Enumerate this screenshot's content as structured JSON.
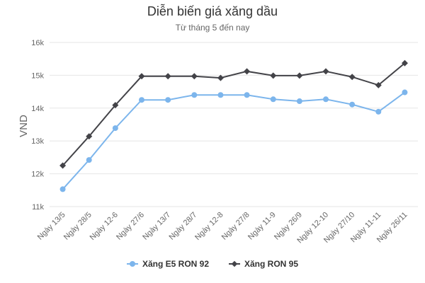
{
  "colors": {
    "e5": "#7cb5ec",
    "ron95": "#434348",
    "grid": "#e6e6e6",
    "text": "#666666"
  },
  "chart_data": {
    "type": "line",
    "title": "Diễn biến giá xăng dầu",
    "subtitle": "Từ tháng 5 đến nay",
    "ylabel": "VND",
    "xlabel": "",
    "ylim": [
      11000,
      16000
    ],
    "yticks": [
      11000,
      12000,
      13000,
      14000,
      15000,
      16000
    ],
    "ytick_labels": [
      "11k",
      "12k",
      "13k",
      "14k",
      "15k",
      "16k"
    ],
    "grid": true,
    "legend_position": "bottom",
    "categories": [
      "Ngày 13/5",
      "Ngày 28/5",
      "Ngày 12-6",
      "Ngày 27/6",
      "Ngày 13/7",
      "Ngày 28/7",
      "Ngày 12-8",
      "Ngày 27/8",
      "Ngày 11-9",
      "Ngày 26/9",
      "Ngày 12-10",
      "Ngày 27/10",
      "Ngày 11-11",
      "Ngày 26/11"
    ],
    "series": [
      {
        "name": "Xăng E5 RON 92",
        "marker": "circle",
        "color_key": "e5",
        "values": [
          11530,
          12420,
          13390,
          14250,
          14250,
          14400,
          14400,
          14400,
          14270,
          14210,
          14270,
          14110,
          13890,
          14480
        ]
      },
      {
        "name": "Xăng RON 95",
        "marker": "diamond",
        "color_key": "ron95",
        "values": [
          12250,
          13140,
          14090,
          14970,
          14970,
          14970,
          14920,
          15120,
          14990,
          14990,
          15120,
          14950,
          14700,
          15370
        ]
      }
    ]
  }
}
